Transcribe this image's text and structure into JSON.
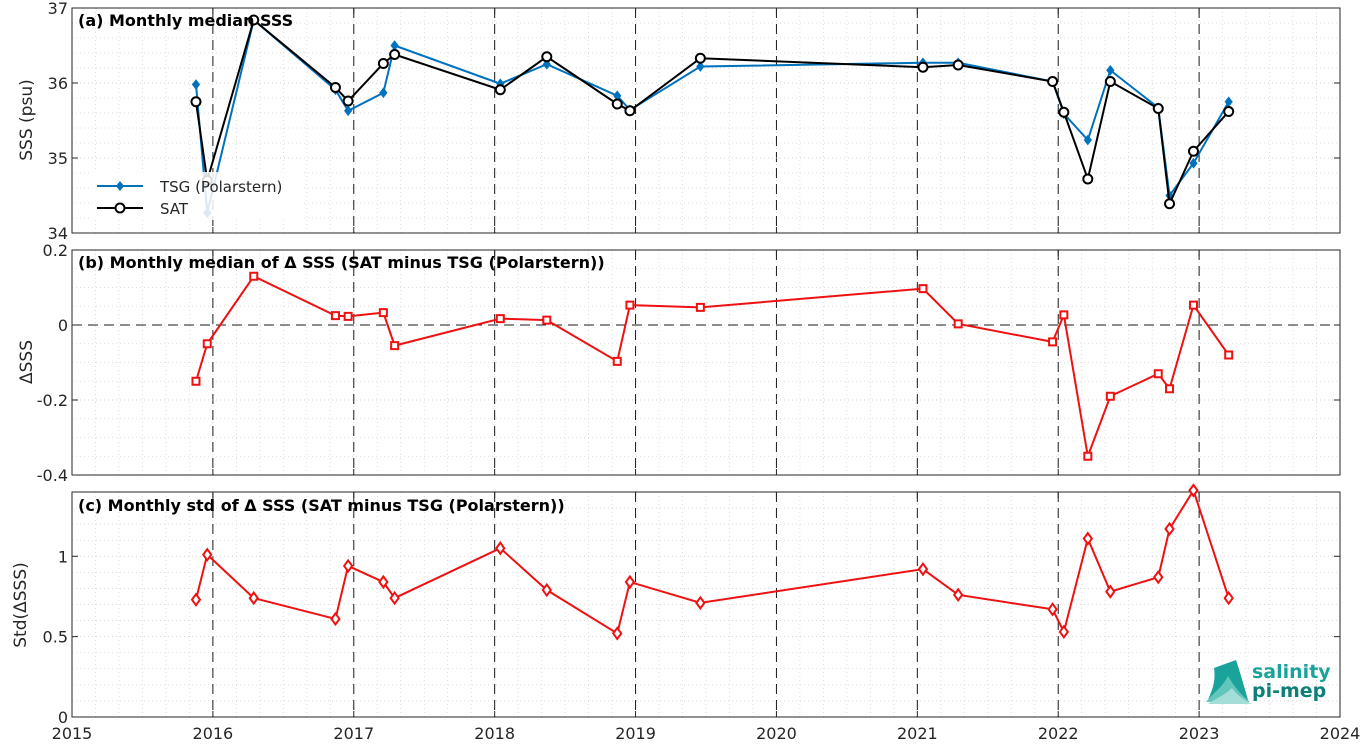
{
  "logo": {
    "line1": "salinity",
    "line2": "pi-mep",
    "color": "#1aa39a"
  },
  "colors": {
    "tsg": "#0072bd",
    "sat": "#000000",
    "red": "#ee1111"
  },
  "chart_data": [
    {
      "type": "line",
      "title": "(a) Monthly median SSS",
      "ylabel": "SSS (psu)",
      "xlim": [
        2015,
        2024
      ],
      "ylim": [
        34,
        37
      ],
      "yticks": [
        "34",
        "35",
        "36",
        "37"
      ],
      "xticks": [
        "2015",
        "2016",
        "2017",
        "2018",
        "2019",
        "2020",
        "2021",
        "2022",
        "2023",
        "2024"
      ],
      "grid": true,
      "legend": "left",
      "series": [
        {
          "name": "TSG (Polarstern)",
          "marker": "diamond",
          "x": [
            2015.88,
            2015.96,
            2016.29,
            2016.87,
            2016.96,
            2017.21,
            2017.29,
            2018.04,
            2018.37,
            2018.87,
            2018.96,
            2019.46,
            2021.04,
            2021.29,
            2021.96,
            2022.04,
            2022.21,
            2022.37,
            2022.71,
            2022.79,
            2022.96,
            2023.21
          ],
          "y": [
            35.98,
            34.27,
            36.84,
            35.91,
            35.63,
            35.87,
            36.5,
            35.99,
            36.25,
            35.83,
            35.64,
            36.22,
            36.27,
            36.27,
            36.02,
            35.59,
            35.24,
            36.17,
            35.67,
            34.5,
            34.93,
            35.75
          ]
        },
        {
          "name": "SAT",
          "marker": "circle",
          "x": [
            2015.88,
            2015.96,
            2016.29,
            2016.87,
            2016.96,
            2017.21,
            2017.29,
            2018.04,
            2018.37,
            2018.87,
            2018.96,
            2019.46,
            2021.04,
            2021.29,
            2021.96,
            2022.04,
            2022.21,
            2022.37,
            2022.71,
            2022.79,
            2022.96,
            2023.21
          ],
          "y": [
            35.75,
            34.7,
            36.84,
            35.94,
            35.76,
            36.26,
            36.38,
            35.91,
            36.35,
            35.72,
            35.63,
            36.33,
            36.21,
            36.24,
            36.02,
            35.61,
            34.72,
            36.02,
            35.66,
            34.39,
            35.09,
            35.62
          ]
        }
      ]
    },
    {
      "type": "line",
      "title": "(b) Monthly median of Δ SSS (SAT minus TSG (Polarstern))",
      "ylabel": "ΔSSS",
      "xlim": [
        2015,
        2024
      ],
      "ylim": [
        -0.4,
        0.2
      ],
      "yticks": [
        "-0.4",
        "-0.2",
        "0",
        "0.2"
      ],
      "xticks": [
        "2015",
        "2016",
        "2017",
        "2018",
        "2019",
        "2020",
        "2021",
        "2022",
        "2023",
        "2024"
      ],
      "grid": true,
      "reference_line": 0,
      "series": [
        {
          "marker": "square",
          "x": [
            2015.88,
            2015.96,
            2016.29,
            2016.87,
            2016.96,
            2017.21,
            2017.29,
            2018.04,
            2018.37,
            2018.87,
            2018.96,
            2019.46,
            2021.04,
            2021.29,
            2021.96,
            2022.04,
            2022.21,
            2022.37,
            2022.71,
            2022.79,
            2022.96,
            2023.21
          ],
          "y": [
            -0.15,
            -0.05,
            0.13,
            0.025,
            0.023,
            0.033,
            -0.055,
            0.017,
            0.013,
            -0.097,
            0.053,
            0.047,
            0.097,
            0.003,
            -0.045,
            0.027,
            -0.35,
            -0.19,
            -0.13,
            -0.17,
            0.053,
            -0.08
          ]
        }
      ]
    },
    {
      "type": "line",
      "title": "(c) Monthly std of Δ SSS (SAT minus TSG (Polarstern))",
      "ylabel": "Std(ΔSSS)",
      "xlim": [
        2015,
        2024
      ],
      "ylim": [
        0,
        1.4
      ],
      "yticks": [
        "0",
        "0.5",
        "1"
      ],
      "xticks": [
        "2015",
        "2016",
        "2017",
        "2018",
        "2019",
        "2020",
        "2021",
        "2022",
        "2023",
        "2024"
      ],
      "grid": true,
      "series": [
        {
          "marker": "diamond",
          "x": [
            2015.88,
            2015.96,
            2016.29,
            2016.87,
            2016.96,
            2017.21,
            2017.29,
            2018.04,
            2018.37,
            2018.87,
            2018.96,
            2019.46,
            2021.04,
            2021.29,
            2021.96,
            2022.04,
            2022.21,
            2022.37,
            2022.71,
            2022.79,
            2022.96,
            2023.21
          ],
          "y": [
            0.73,
            1.01,
            0.74,
            0.61,
            0.94,
            0.84,
            0.74,
            1.05,
            0.79,
            0.52,
            0.84,
            0.71,
            0.92,
            0.76,
            0.67,
            0.53,
            1.11,
            0.78,
            0.87,
            1.17,
            1.41,
            0.74
          ]
        }
      ]
    }
  ]
}
